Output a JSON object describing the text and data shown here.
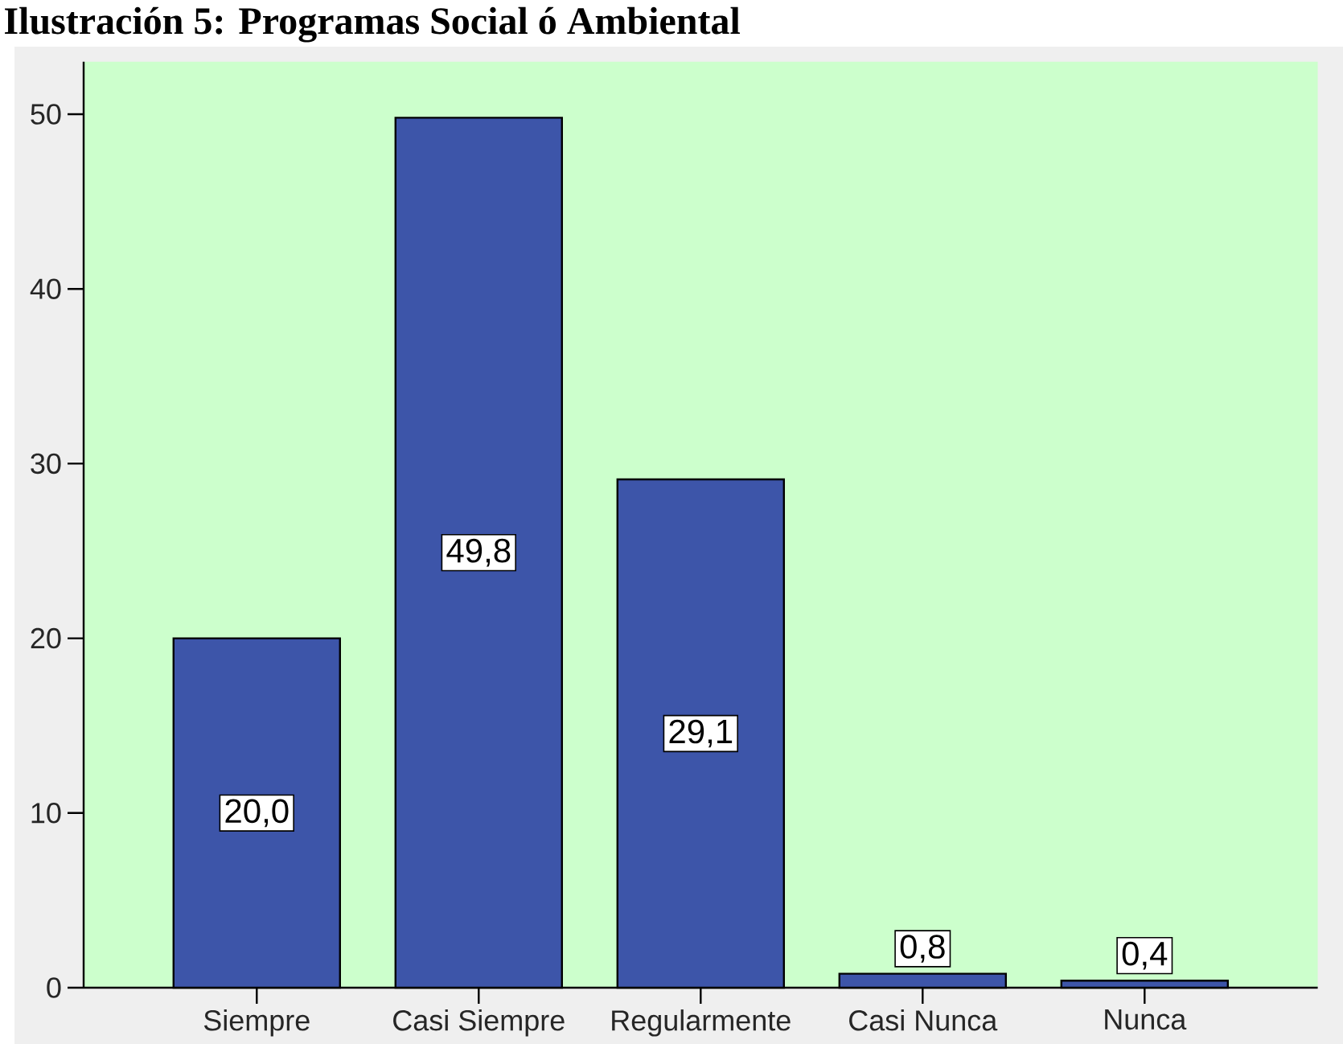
{
  "chart_data": {
    "type": "bar",
    "title": "Ilustración 5: Programas Social ó Ambiental",
    "categories": [
      "Siempre",
      "Casi Siempre",
      "Regularmente",
      "Casi Nunca",
      "Nunca"
    ],
    "values": [
      20.0,
      49.8,
      29.1,
      0.8,
      0.4
    ],
    "value_labels": [
      "20,0",
      "49,8",
      "29,1",
      "0,8",
      "0,4"
    ],
    "color": "#3d55a9",
    "ylim": [
      0,
      53
    ],
    "yticks": [
      0,
      10,
      20,
      30,
      40,
      50
    ]
  }
}
